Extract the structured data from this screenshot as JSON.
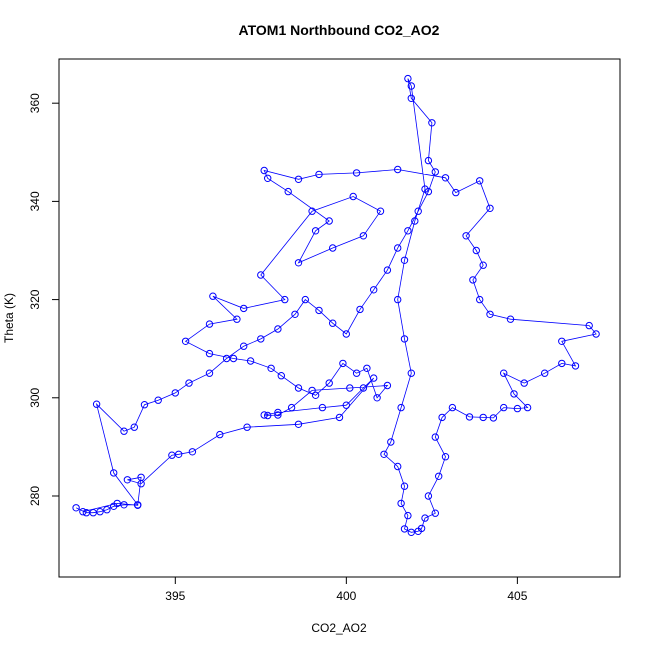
{
  "chart_data": {
    "type": "line",
    "title": "ATOM1 Northbound CO2_AO2",
    "xlabel": "CO2_AO2",
    "ylabel": "Theta (K)",
    "xlim": [
      391.6,
      408.0
    ],
    "ylim": [
      263.5,
      369.0
    ],
    "xticks": [
      395,
      400,
      405
    ],
    "yticks": [
      280,
      300,
      320,
      340,
      360
    ],
    "series_color": "#0000ff",
    "marker": "open-circle",
    "grid": false,
    "legend": "none",
    "series": [
      {
        "points": [
          [
            392.1,
            277.6
          ],
          [
            392.4,
            276.6
          ],
          [
            392.6,
            276.6
          ],
          [
            392.8,
            276.8
          ],
          [
            393.0,
            277.2
          ],
          [
            393.2,
            277.9
          ],
          [
            393.5,
            278.2
          ],
          [
            393.9,
            278.2
          ],
          [
            393.2,
            284.7
          ],
          [
            392.7,
            298.7
          ],
          [
            393.5,
            293.2
          ],
          [
            393.8,
            294.0
          ],
          [
            394.1,
            298.6
          ],
          [
            394.5,
            299.5
          ],
          [
            395.0,
            301.0
          ],
          [
            395.4,
            303.0
          ],
          [
            396.0,
            305.0
          ],
          [
            396.5,
            308.0
          ],
          [
            397.0,
            310.5
          ],
          [
            397.5,
            312.0
          ],
          [
            398.0,
            314.0
          ],
          [
            398.5,
            317.0
          ],
          [
            398.8,
            320.0
          ],
          [
            399.2,
            317.8
          ],
          [
            399.6,
            315.2
          ],
          [
            400.0,
            313.0
          ],
          [
            400.4,
            318.0
          ],
          [
            400.8,
            322.0
          ],
          [
            401.2,
            326.0
          ],
          [
            401.5,
            330.5
          ],
          [
            401.8,
            334.0
          ],
          [
            402.1,
            338.0
          ],
          [
            402.4,
            342.0
          ],
          [
            402.6,
            346.0
          ],
          [
            402.4,
            348.3
          ],
          [
            402.5,
            356.0
          ],
          [
            401.9,
            361.0
          ],
          [
            401.8,
            365.0
          ],
          [
            401.9,
            363.5
          ],
          [
            402.3,
            342.5
          ],
          [
            402.0,
            336.0
          ],
          [
            401.7,
            328.0
          ],
          [
            401.5,
            320.0
          ],
          [
            401.7,
            312.0
          ],
          [
            401.9,
            305.0
          ],
          [
            401.6,
            298.0
          ],
          [
            401.3,
            291.0
          ],
          [
            401.1,
            288.5
          ],
          [
            401.5,
            286.0
          ],
          [
            401.7,
            282.0
          ],
          [
            401.6,
            278.5
          ],
          [
            401.8,
            276.0
          ],
          [
            401.7,
            273.3
          ],
          [
            401.9,
            272.6
          ],
          [
            402.1,
            272.8
          ],
          [
            402.2,
            273.4
          ],
          [
            402.3,
            275.5
          ],
          [
            402.6,
            276.5
          ],
          [
            402.4,
            280.0
          ],
          [
            402.7,
            284.0
          ],
          [
            402.9,
            288.0
          ],
          [
            402.6,
            292.0
          ],
          [
            402.8,
            296.0
          ],
          [
            403.1,
            298.0
          ],
          [
            403.6,
            296.1
          ],
          [
            404.0,
            296.0
          ],
          [
            404.3,
            295.9
          ],
          [
            404.6,
            298.0
          ],
          [
            405.0,
            297.8
          ],
          [
            405.3,
            298.0
          ],
          [
            404.9,
            300.8
          ],
          [
            404.6,
            305.0
          ],
          [
            405.2,
            303.0
          ],
          [
            405.8,
            305.0
          ],
          [
            406.3,
            307.0
          ],
          [
            406.7,
            306.5
          ],
          [
            406.3,
            311.5
          ],
          [
            407.3,
            313.0
          ],
          [
            407.1,
            314.7
          ],
          [
            404.8,
            316.0
          ],
          [
            404.2,
            317.0
          ],
          [
            403.9,
            320.0
          ],
          [
            403.7,
            324.0
          ],
          [
            404.0,
            327.0
          ],
          [
            403.8,
            330.0
          ],
          [
            403.5,
            333.0
          ],
          [
            404.2,
            338.6
          ],
          [
            403.9,
            344.2
          ],
          [
            403.2,
            341.8
          ],
          [
            402.9,
            344.8
          ],
          [
            401.5,
            346.5
          ],
          [
            400.3,
            345.8
          ],
          [
            399.2,
            345.5
          ],
          [
            398.6,
            344.5
          ],
          [
            397.6,
            346.3
          ],
          [
            397.7,
            344.7
          ],
          [
            398.3,
            342.0
          ],
          [
            399.5,
            336.0
          ],
          [
            399.1,
            334.0
          ],
          [
            398.6,
            327.5
          ],
          [
            399.6,
            330.5
          ],
          [
            400.5,
            333.0
          ],
          [
            401.0,
            338.0
          ],
          [
            400.2,
            341.0
          ],
          [
            399.0,
            338.0
          ],
          [
            397.5,
            325.0
          ],
          [
            398.2,
            320.0
          ],
          [
            397.0,
            318.2
          ],
          [
            396.1,
            320.7
          ],
          [
            396.8,
            316.0
          ],
          [
            396.0,
            315.0
          ],
          [
            395.3,
            311.5
          ],
          [
            396.0,
            309.0
          ],
          [
            396.7,
            308.0
          ],
          [
            397.2,
            307.5
          ],
          [
            397.8,
            306.0
          ],
          [
            398.1,
            304.5
          ],
          [
            398.6,
            302.0
          ],
          [
            399.1,
            300.5
          ],
          [
            399.5,
            303.0
          ],
          [
            399.9,
            307.0
          ],
          [
            400.3,
            305.0
          ],
          [
            400.6,
            306.0
          ],
          [
            400.9,
            300.0
          ],
          [
            401.2,
            302.5
          ],
          [
            400.1,
            302.0
          ],
          [
            399.0,
            301.5
          ],
          [
            398.4,
            298.0
          ],
          [
            398.0,
            296.5
          ],
          [
            397.7,
            296.4
          ],
          [
            397.6,
            296.5
          ],
          [
            398.0,
            297.0
          ],
          [
            399.3,
            298.0
          ],
          [
            400.0,
            298.5
          ],
          [
            400.5,
            302.0
          ],
          [
            400.8,
            304.0
          ],
          [
            399.8,
            296.0
          ],
          [
            398.6,
            294.6
          ],
          [
            397.1,
            294.0
          ],
          [
            396.3,
            292.5
          ],
          [
            395.5,
            289.0
          ],
          [
            395.1,
            288.5
          ],
          [
            394.9,
            288.3
          ],
          [
            394.0,
            282.5
          ],
          [
            393.6,
            283.3
          ],
          [
            394.0,
            283.8
          ],
          [
            393.9,
            278.1
          ],
          [
            393.3,
            278.5
          ],
          [
            392.3,
            276.8
          ]
        ]
      }
    ]
  }
}
